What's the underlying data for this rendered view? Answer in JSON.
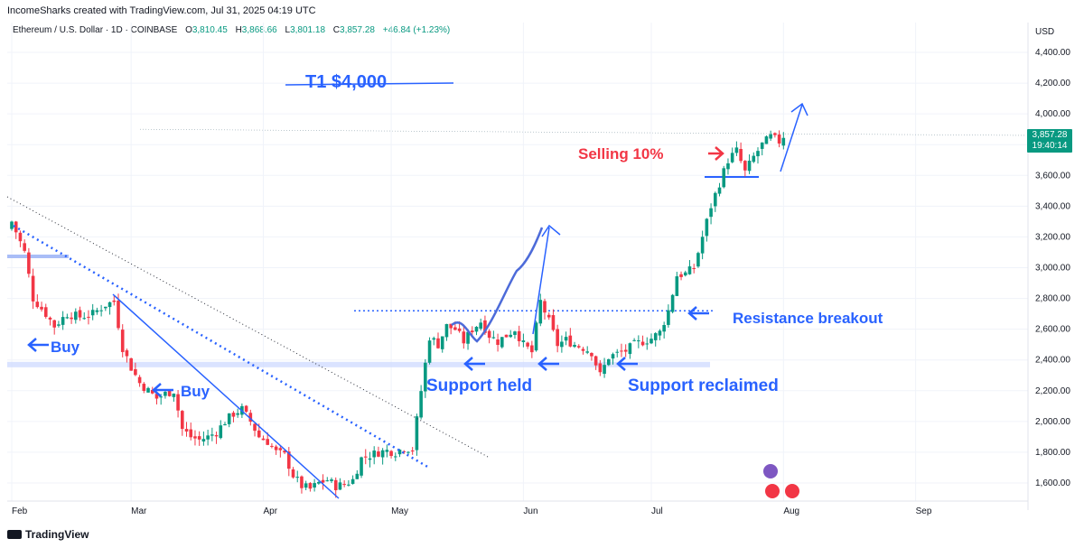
{
  "header": {
    "created_by": "IncomeSharks created with TradingView.com, Jul 31, 2025 04:19 UTC"
  },
  "symbol": {
    "name": "Ethereum / U.S. Dollar · 1D · COINBASE",
    "o_label": "O",
    "o_value": "3,810.45",
    "h_label": "H",
    "h_value": "3,868.66",
    "l_label": "L",
    "l_value": "3,801.18",
    "c_label": "C",
    "c_value": "3,857.28",
    "change": "+46.84 (+1.23%)"
  },
  "currency": "USD",
  "last_price": {
    "value": "3,857.28",
    "countdown": "19:40:14"
  },
  "colors": {
    "up": "#089981",
    "down": "#f23645",
    "annotation_blue": "#2962ff",
    "annotation_red": "#f23645"
  },
  "annotations": {
    "target": "T1 $4,000",
    "selling": "Selling 10%",
    "resistance": "Resistance breakout",
    "support_held": "Support held",
    "support_reclaimed": "Support reclaimed",
    "buy1": "Buy",
    "buy2": "Buy"
  },
  "footer": {
    "brand": "TradingView"
  },
  "chart_data": {
    "type": "candlestick",
    "title": "Ethereum / U.S. Dollar · 1D · COINBASE",
    "ylabel": "USD",
    "ylim": [
      1480,
      4500
    ],
    "y_ticks": [
      "1,600.00",
      "1,800.00",
      "2,000.00",
      "2,200.00",
      "2,400.00",
      "2,600.00",
      "2,800.00",
      "3,000.00",
      "3,200.00",
      "3,400.00",
      "3,600.00",
      "3,800.00",
      "4,000.00",
      "4,200.00",
      "4,400.00"
    ],
    "y_tick_values": [
      1600,
      1800,
      2000,
      2200,
      2400,
      2600,
      2800,
      3000,
      3200,
      3400,
      3600,
      3800,
      4000,
      4200,
      4400
    ],
    "x_ticks": [
      "Feb",
      "Mar",
      "Apr",
      "May",
      "Jun",
      "Jul",
      "Aug",
      "Sep"
    ],
    "x_tick_days": [
      0,
      28,
      59,
      89,
      120,
      150,
      181,
      212
    ],
    "close_path": [
      [
        0,
        3300
      ],
      [
        3,
        3100
      ],
      [
        5,
        2800
      ],
      [
        8,
        2700
      ],
      [
        10,
        2620
      ],
      [
        13,
        2700
      ],
      [
        16,
        2680
      ],
      [
        19,
        2700
      ],
      [
        22,
        2760
      ],
      [
        24,
        2780
      ],
      [
        26,
        2480
      ],
      [
        28,
        2350
      ],
      [
        30,
        2250
      ],
      [
        32,
        2200
      ],
      [
        34,
        2150
      ],
      [
        36,
        2180
      ],
      [
        38,
        2200
      ],
      [
        40,
        1950
      ],
      [
        42,
        1900
      ],
      [
        44,
        1880
      ],
      [
        46,
        1900
      ],
      [
        48,
        1930
      ],
      [
        50,
        2000
      ],
      [
        52,
        2050
      ],
      [
        54,
        2080
      ],
      [
        56,
        2000
      ],
      [
        58,
        1900
      ],
      [
        60,
        1870
      ],
      [
        62,
        1800
      ],
      [
        64,
        1780
      ],
      [
        66,
        1650
      ],
      [
        68,
        1580
      ],
      [
        70,
        1560
      ],
      [
        72,
        1600
      ],
      [
        74,
        1620
      ],
      [
        76,
        1580
      ],
      [
        78,
        1590
      ],
      [
        80,
        1620
      ],
      [
        82,
        1760
      ],
      [
        84,
        1780
      ],
      [
        86,
        1800
      ],
      [
        88,
        1810
      ],
      [
        90,
        1800
      ],
      [
        92,
        1830
      ],
      [
        94,
        1820
      ],
      [
        96,
        2200
      ],
      [
        98,
        2550
      ],
      [
        100,
        2500
      ],
      [
        102,
        2620
      ],
      [
        104,
        2600
      ],
      [
        106,
        2520
      ],
      [
        108,
        2600
      ],
      [
        110,
        2650
      ],
      [
        112,
        2560
      ],
      [
        114,
        2520
      ],
      [
        116,
        2560
      ],
      [
        118,
        2600
      ],
      [
        120,
        2500
      ],
      [
        122,
        2450
      ],
      [
        124,
        2780
      ],
      [
        126,
        2650
      ],
      [
        128,
        2500
      ],
      [
        130,
        2530
      ],
      [
        132,
        2500
      ],
      [
        134,
        2480
      ],
      [
        136,
        2450
      ],
      [
        138,
        2300
      ],
      [
        140,
        2420
      ],
      [
        142,
        2440
      ],
      [
        144,
        2460
      ],
      [
        146,
        2500
      ],
      [
        148,
        2520
      ],
      [
        150,
        2540
      ],
      [
        152,
        2580
      ],
      [
        154,
        2720
      ],
      [
        156,
        2950
      ],
      [
        158,
        2960
      ],
      [
        160,
        3000
      ],
      [
        162,
        3200
      ],
      [
        164,
        3400
      ],
      [
        166,
        3550
      ],
      [
        168,
        3700
      ],
      [
        170,
        3760
      ],
      [
        172,
        3620
      ],
      [
        174,
        3720
      ],
      [
        176,
        3800
      ],
      [
        178,
        3850
      ],
      [
        180,
        3820
      ],
      [
        181,
        3857
      ]
    ],
    "levels": [
      {
        "name": "support",
        "value": 2370
      },
      {
        "name": "resistance",
        "value": 2720
      },
      {
        "name": "upper",
        "value": 3590
      }
    ]
  }
}
